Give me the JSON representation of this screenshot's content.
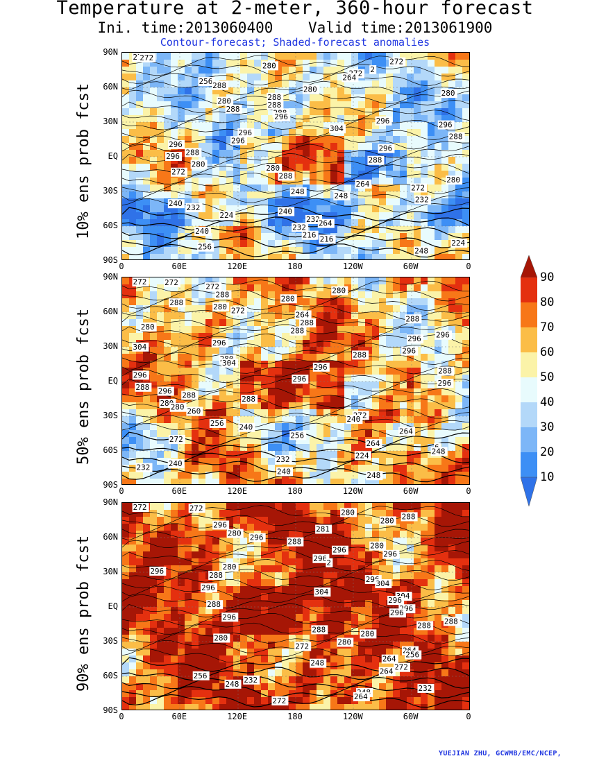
{
  "title": "Temperature at 2-meter, 360-hour forecast",
  "subtitle": "Ini. time:2013060400    Valid time:2013061900",
  "legend_text": "Contour-forecast; Shaded-forecast anomalies",
  "credit": "YUEJIAN ZHU, GCWMB/EMC/NCEP,",
  "y_ticks": [
    "90N",
    "60N",
    "30N",
    "EQ",
    "30S",
    "60S",
    "90S"
  ],
  "x_ticks": [
    "0",
    "60E",
    "120E",
    "180",
    "120W",
    "60W",
    "0"
  ],
  "panels": [
    {
      "label": "10% ens prob fcst",
      "contour_labels": [
        "272",
        "272",
        "272",
        "280",
        "2",
        "272",
        "264",
        "256",
        "288",
        "280",
        "280",
        "288",
        "280",
        "288",
        "288",
        "288",
        "296",
        "296",
        "296",
        "304",
        "296",
        "288",
        "296",
        "296",
        "296",
        "288",
        "296",
        "288",
        "280",
        "280",
        "272",
        "288",
        "280",
        "264",
        "272",
        "248",
        "248",
        "232",
        "240",
        "232",
        "240",
        "224",
        "232",
        "264",
        "232",
        "240",
        "216",
        "216",
        "224",
        "256",
        "248"
      ]
    },
    {
      "label": "50% ens prob fcst",
      "contour_labels": [
        "272",
        "272",
        "272",
        "280",
        "288",
        "280",
        "288",
        "280",
        "272",
        "264",
        "288",
        "288",
        "280",
        "288",
        "296",
        "296",
        "296",
        "304",
        "296",
        "288",
        "280",
        "304",
        "296",
        "288",
        "296",
        "296",
        "296",
        "288",
        "296",
        "288",
        "288",
        "280",
        "280",
        "260",
        "272",
        "240",
        "256",
        "240",
        "264",
        "256",
        "272",
        "264",
        "6",
        "248",
        "224",
        "232",
        "240",
        "232",
        "240",
        "248"
      ]
    },
    {
      "label": "90% ens prob fcst",
      "contour_labels": [
        "272",
        "272",
        "280",
        "288",
        "280",
        "296",
        "281",
        "280",
        "296",
        "288",
        "280",
        "296",
        "296",
        "296",
        "2",
        "280",
        "296",
        "288",
        "296",
        "304",
        "296",
        "304",
        "304",
        "296",
        "288",
        "296",
        "296",
        "296",
        "288",
        "288",
        "288",
        "280",
        "280",
        "280",
        "272",
        "264",
        "256",
        "264",
        "248",
        "272",
        "264",
        "256",
        "232",
        "248",
        "232",
        "248",
        "264",
        "272"
      ]
    }
  ],
  "colorbar": {
    "levels": [
      "10",
      "20",
      "30",
      "40",
      "50",
      "60",
      "70",
      "80",
      "90"
    ],
    "colors": [
      "#2f72e8",
      "#3d8ff5",
      "#7cb6f7",
      "#b3d8f9",
      "#e8fbfd",
      "#fbf3a8",
      "#fbbd47",
      "#f77718",
      "#e4300f",
      "#a61606"
    ]
  },
  "map_colors": {
    "ocean_cold": "#3d8ff5",
    "ocean_cool": "#b3d8f9",
    "neutral": "#e8fbfd",
    "warm": "#fbbd47",
    "hot": "#e4300f",
    "very_hot": "#a61606"
  }
}
